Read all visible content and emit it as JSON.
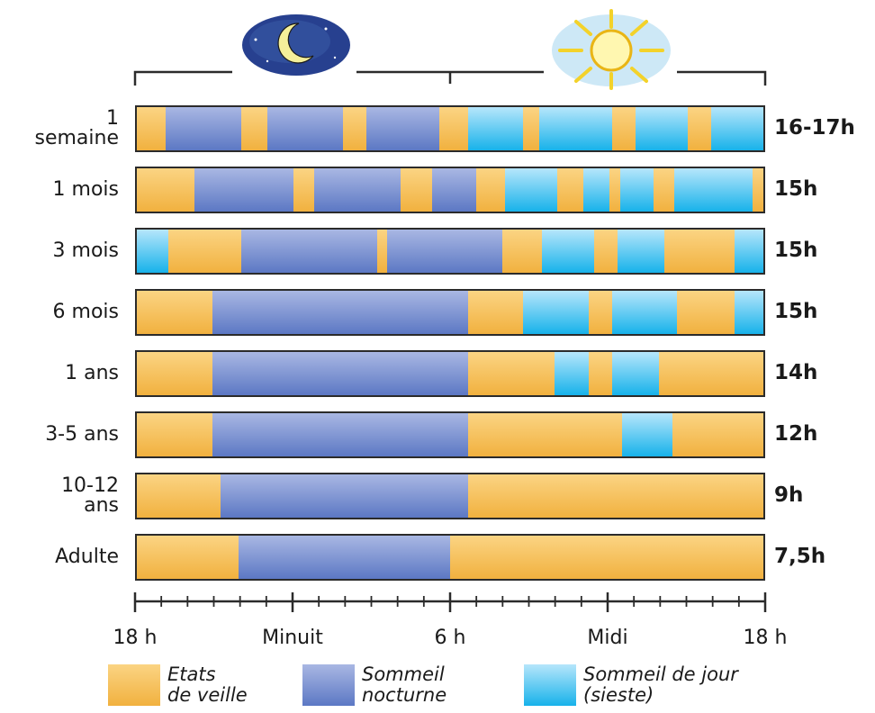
{
  "legend": [
    {
      "key": "veille",
      "line1": "Etats",
      "line2": "de veille"
    },
    {
      "key": "nocturne",
      "line1": "Sommeil",
      "line2": "nocturne"
    },
    {
      "key": "sieste",
      "line1": "Sommeil de jour",
      "line2": "(sieste)"
    }
  ],
  "axis": {
    "labels": [
      {
        "hour": 0,
        "text": "18 h"
      },
      {
        "hour": 6,
        "text": "Minuit"
      },
      {
        "hour": 12,
        "text": "6 h"
      },
      {
        "hour": 18,
        "text": "Midi"
      },
      {
        "hour": 24,
        "text": "18 h"
      }
    ]
  },
  "icons": {
    "moon": "moon-icon",
    "sun": "sun-icon"
  },
  "colors": {
    "veille": "#f1b13f",
    "nocturne": "#5c78c4",
    "sieste": "#17b2ea",
    "outline": "#2b2b2b"
  },
  "rows": [
    {
      "label": [
        "1",
        "semaine"
      ],
      "total": "16-17h",
      "segments": [
        [
          "veille",
          0,
          1.1
        ],
        [
          "nocturne",
          1.1,
          4
        ],
        [
          "veille",
          4,
          5
        ],
        [
          "nocturne",
          5,
          7.9
        ],
        [
          "veille",
          7.9,
          8.8
        ],
        [
          "nocturne",
          8.8,
          11.6
        ],
        [
          "veille",
          11.6,
          12.7
        ],
        [
          "sieste",
          12.7,
          14.8
        ],
        [
          "veille",
          14.8,
          15.4
        ],
        [
          "sieste",
          15.4,
          18.2
        ],
        [
          "veille",
          18.2,
          19.1
        ],
        [
          "sieste",
          19.1,
          21.1
        ],
        [
          "veille",
          21.1,
          22
        ],
        [
          "sieste",
          22,
          24
        ]
      ]
    },
    {
      "label": [
        "1 mois"
      ],
      "total": "15h",
      "segments": [
        [
          "veille",
          0,
          2.2
        ],
        [
          "nocturne",
          2.2,
          6
        ],
        [
          "veille",
          6,
          6.8
        ],
        [
          "nocturne",
          6.8,
          10.1
        ],
        [
          "veille",
          10.1,
          11.3
        ],
        [
          "nocturne",
          11.3,
          13
        ],
        [
          "veille",
          13,
          14.1
        ],
        [
          "sieste",
          14.1,
          16.1
        ],
        [
          "veille",
          16.1,
          17.1
        ],
        [
          "sieste",
          17.1,
          18.1
        ],
        [
          "veille",
          18.1,
          18.5
        ],
        [
          "sieste",
          18.5,
          19.8
        ],
        [
          "veille",
          19.8,
          20.6
        ],
        [
          "sieste",
          20.6,
          23.6
        ],
        [
          "veille",
          23.6,
          24
        ]
      ]
    },
    {
      "label": [
        "3 mois"
      ],
      "total": "15h",
      "segments": [
        [
          "sieste",
          0,
          1.2
        ],
        [
          "veille",
          1.2,
          4
        ],
        [
          "nocturne",
          4,
          9.2
        ],
        [
          "veille",
          9.2,
          9.6
        ],
        [
          "nocturne",
          9.6,
          14
        ],
        [
          "veille",
          14,
          15.5
        ],
        [
          "sieste",
          15.5,
          17.5
        ],
        [
          "veille",
          17.5,
          18.4
        ],
        [
          "sieste",
          18.4,
          20.2
        ],
        [
          "veille",
          20.2,
          22.9
        ],
        [
          "sieste",
          22.9,
          24
        ]
      ]
    },
    {
      "label": [
        "6 mois"
      ],
      "total": "15h",
      "segments": [
        [
          "veille",
          0,
          2.9
        ],
        [
          "nocturne",
          2.9,
          12.7
        ],
        [
          "veille",
          12.7,
          14.8
        ],
        [
          "sieste",
          14.8,
          17.3
        ],
        [
          "veille",
          17.3,
          18.2
        ],
        [
          "sieste",
          18.2,
          20.7
        ],
        [
          "veille",
          20.7,
          22.9
        ],
        [
          "sieste",
          22.9,
          24
        ]
      ]
    },
    {
      "label": [
        "1 ans"
      ],
      "total": "14h",
      "segments": [
        [
          "veille",
          0,
          2.9
        ],
        [
          "nocturne",
          2.9,
          12.7
        ],
        [
          "veille",
          12.7,
          16
        ],
        [
          "sieste",
          16,
          17.3
        ],
        [
          "veille",
          17.3,
          18.2
        ],
        [
          "sieste",
          18.2,
          20
        ],
        [
          "veille",
          20,
          24
        ]
      ]
    },
    {
      "label": [
        "3-5 ans"
      ],
      "total": "12h",
      "segments": [
        [
          "veille",
          0,
          2.9
        ],
        [
          "nocturne",
          2.9,
          12.7
        ],
        [
          "veille",
          12.7,
          18.6
        ],
        [
          "sieste",
          18.6,
          20.5
        ],
        [
          "veille",
          20.5,
          24
        ]
      ]
    },
    {
      "label": [
        "10-12",
        "ans"
      ],
      "total": "9h",
      "segments": [
        [
          "veille",
          0,
          3.2
        ],
        [
          "nocturne",
          3.2,
          12.7
        ],
        [
          "veille",
          12.7,
          24
        ]
      ]
    },
    {
      "label": [
        "Adulte"
      ],
      "total": "7,5h",
      "segments": [
        [
          "veille",
          0,
          3.9
        ],
        [
          "nocturne",
          3.9,
          12
        ],
        [
          "veille",
          12,
          24
        ]
      ]
    }
  ]
}
